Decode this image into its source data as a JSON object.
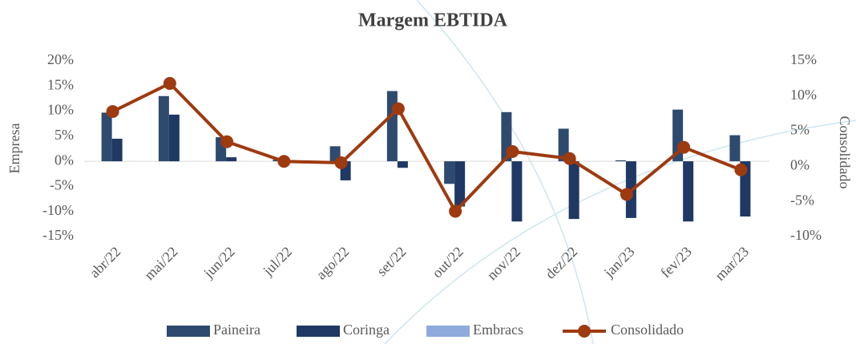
{
  "chart_data": {
    "type": "bar_line",
    "title": "Margem EBTIDA",
    "y_label": "Empresa",
    "y2_label": "Consolidado",
    "categories": [
      "abr/22",
      "mai/22",
      "jun/22",
      "jul/22",
      "ago/22",
      "set/22",
      "out/22",
      "nov/22",
      "dez/22",
      "jan/23",
      "fev/23",
      "mar/23"
    ],
    "series": [
      {
        "name": "Paineira",
        "color": "#2e4a6e",
        "values": [
          9.7,
          13,
          4.8,
          0.3,
          3,
          14,
          -4.5,
          9.8,
          6.5,
          0.2,
          10.3,
          5.2
        ]
      },
      {
        "name": "Coringa",
        "color": "#1f3864",
        "values": [
          4.5,
          9.3,
          0.8,
          0,
          -3.8,
          -1.3,
          -9,
          -12,
          -11.5,
          -11.3,
          -12,
          -11
        ]
      },
      {
        "name": "Embracs",
        "color": "#8faadc",
        "values": [
          null,
          null,
          null,
          null,
          null,
          null,
          null,
          null,
          null,
          null,
          null,
          null
        ]
      },
      {
        "name": "Consolidado",
        "color": "#9e3a10",
        "axis": "y2",
        "values": [
          7.8,
          11.8,
          3.5,
          0.7,
          0.5,
          8.2,
          -6.4,
          2.1,
          1.1,
          -4,
          2.7,
          -0.5
        ]
      }
    ],
    "ylim": [
      -15,
      20
    ],
    "yticks": [
      {
        "value": -15,
        "label": "-15%"
      },
      {
        "value": -10,
        "label": "-10%"
      },
      {
        "value": -5,
        "label": "-5%"
      },
      {
        "value": 0,
        "label": "0%"
      },
      {
        "value": 5,
        "label": "5%"
      },
      {
        "value": 10,
        "label": "10%"
      },
      {
        "value": 15,
        "label": "15%"
      },
      {
        "value": 20,
        "label": "20%"
      }
    ],
    "y2lim": [
      -10,
      15
    ],
    "y2ticks": [
      {
        "value": -10,
        "label": "-10%"
      },
      {
        "value": -5,
        "label": "-5%"
      },
      {
        "value": 0,
        "label": "0%"
      },
      {
        "value": 5,
        "label": "5%"
      },
      {
        "value": 10,
        "label": "10%"
      },
      {
        "value": 15,
        "label": "15%"
      }
    ],
    "legend": "bottom"
  }
}
